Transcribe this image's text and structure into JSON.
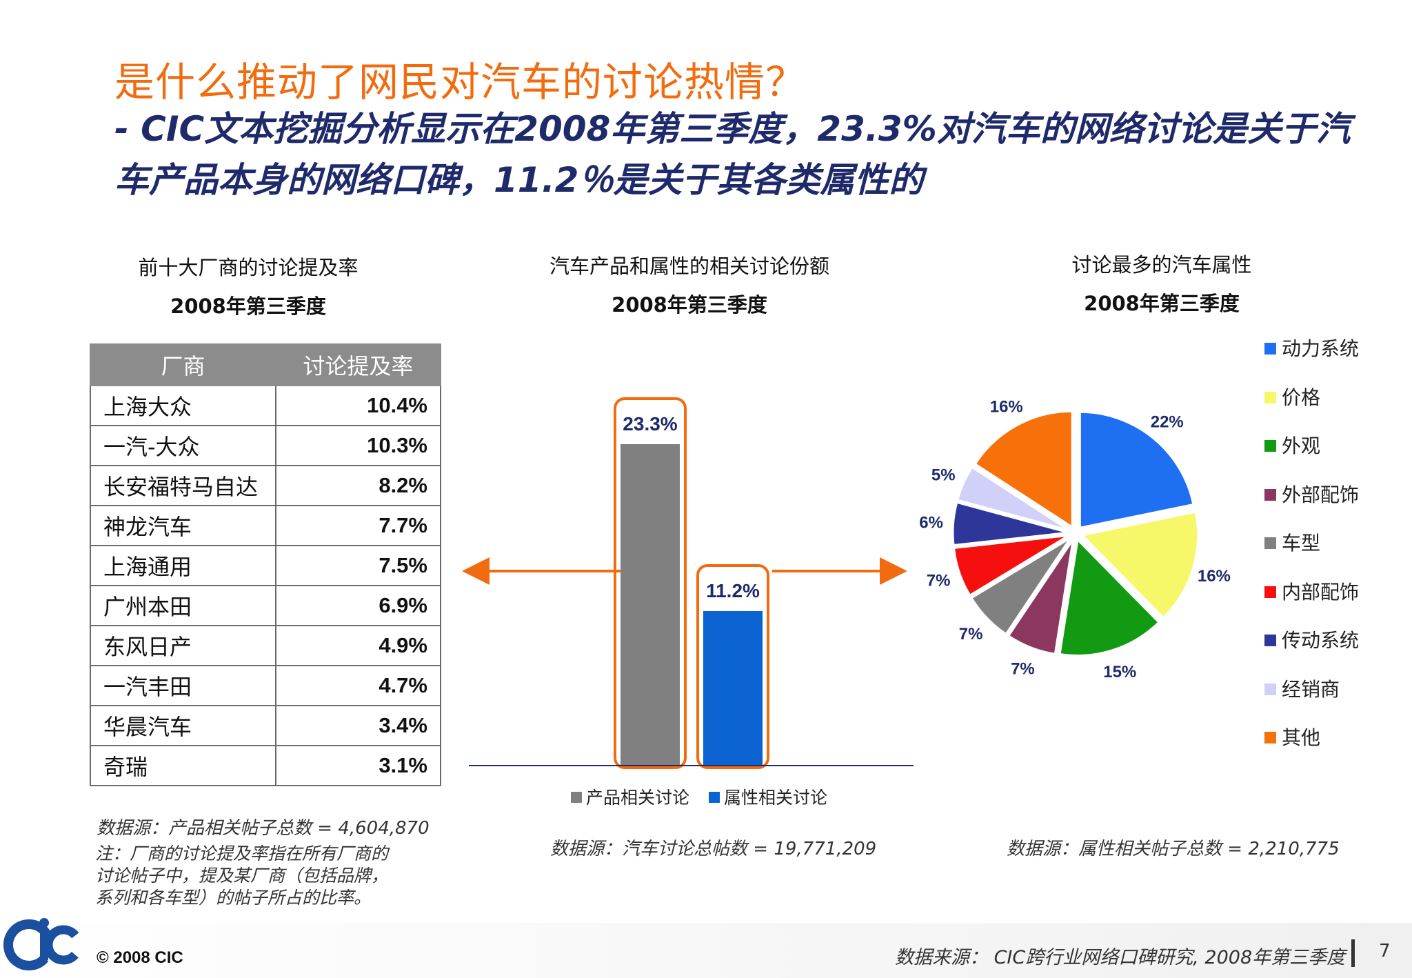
{
  "title": "是什么推动了网民对汽车的讨论热情？",
  "subtitle": "- CIC文本挖掘分析显示在2008年第三季度，23.3%对汽车的网络讨论是关于汽车产品本身的网络口碑，11.2％是关于其各类属性的",
  "left_panel": {
    "caption_line1": "前十大厂商的讨论提及率",
    "caption_line2": "2008年第三季度",
    "table": {
      "headers": [
        "厂商",
        "讨论提及率"
      ],
      "rows": [
        [
          "上海大众",
          "10.4%"
        ],
        [
          "一汽-大众",
          "10.3%"
        ],
        [
          "长安福特马自达",
          "8.2%"
        ],
        [
          "神龙汽车",
          "7.7%"
        ],
        [
          "上海通用",
          "7.5%"
        ],
        [
          "广州本田",
          "6.9%"
        ],
        [
          "东风日产",
          "4.9%"
        ],
        [
          "一汽丰田",
          "4.7%"
        ],
        [
          "华晨汽车",
          "3.4%"
        ],
        [
          "奇瑞",
          "3.1%"
        ]
      ]
    },
    "source": "数据源：产品相关帖子总数 = 4,604,870",
    "note_lines": [
      "注：厂商的讨论提及率指在所有厂商的",
      "讨论帖子中，提及某厂商（包括品牌，",
      "系列和各车型）的帖子所占的比率。"
    ]
  },
  "middle_panel": {
    "caption_line1": "汽车产品和属性的相关讨论份额",
    "caption_line2": "2008年第三季度",
    "source": "数据源：汽车讨论总帖数 = 19,771,209"
  },
  "right_panel": {
    "caption_line1": "讨论最多的汽车属性",
    "caption_line2": "2008年第三季度",
    "source": "数据源：属性相关帖子总数 = 2,210,775"
  },
  "chart_data": [
    {
      "type": "bar",
      "categories": [
        "产品相关讨论",
        "属性相关讨论"
      ],
      "values": [
        23.3,
        11.2
      ],
      "labels": [
        "23.3%",
        "11.2%"
      ],
      "colors": [
        "#808080",
        "#0a63d1"
      ],
      "ylim": [
        0,
        25
      ],
      "legend_position": "bottom",
      "title": "汽车产品和属性的相关讨论份额",
      "subtitle": "2008年第三季度"
    },
    {
      "type": "pie",
      "categories": [
        "动力系统",
        "价格",
        "外观",
        "外部配饰",
        "车型",
        "内部配饰",
        "传动系统",
        "经销商",
        "其他"
      ],
      "values": [
        22,
        16,
        15,
        7,
        7,
        7,
        6,
        5,
        16
      ],
      "labels": [
        "22%",
        "16%",
        "15%",
        "7%",
        "7%",
        "7%",
        "6%",
        "5%",
        "16%"
      ],
      "colors": [
        "#1f6ff2",
        "#f7f76a",
        "#129a12",
        "#8b3760",
        "#808080",
        "#f50f0f",
        "#2e3799",
        "#d0d0f8",
        "#f7700a"
      ],
      "legend_position": "right",
      "title": "讨论最多的汽车属性",
      "subtitle": "2008年第三季度"
    }
  ],
  "colors": {
    "title": "#f26b0f",
    "subtitle": "#1f2a6b",
    "accent_orange": "#f26b0f",
    "logo_blue": "#1b4fa0"
  },
  "footer": {
    "copyright": "© 2008  CIC",
    "source": "数据来源： CIC跨行业网络口碑研究, 2008年第三季度",
    "page": "7",
    "logo_text": "CIC"
  }
}
